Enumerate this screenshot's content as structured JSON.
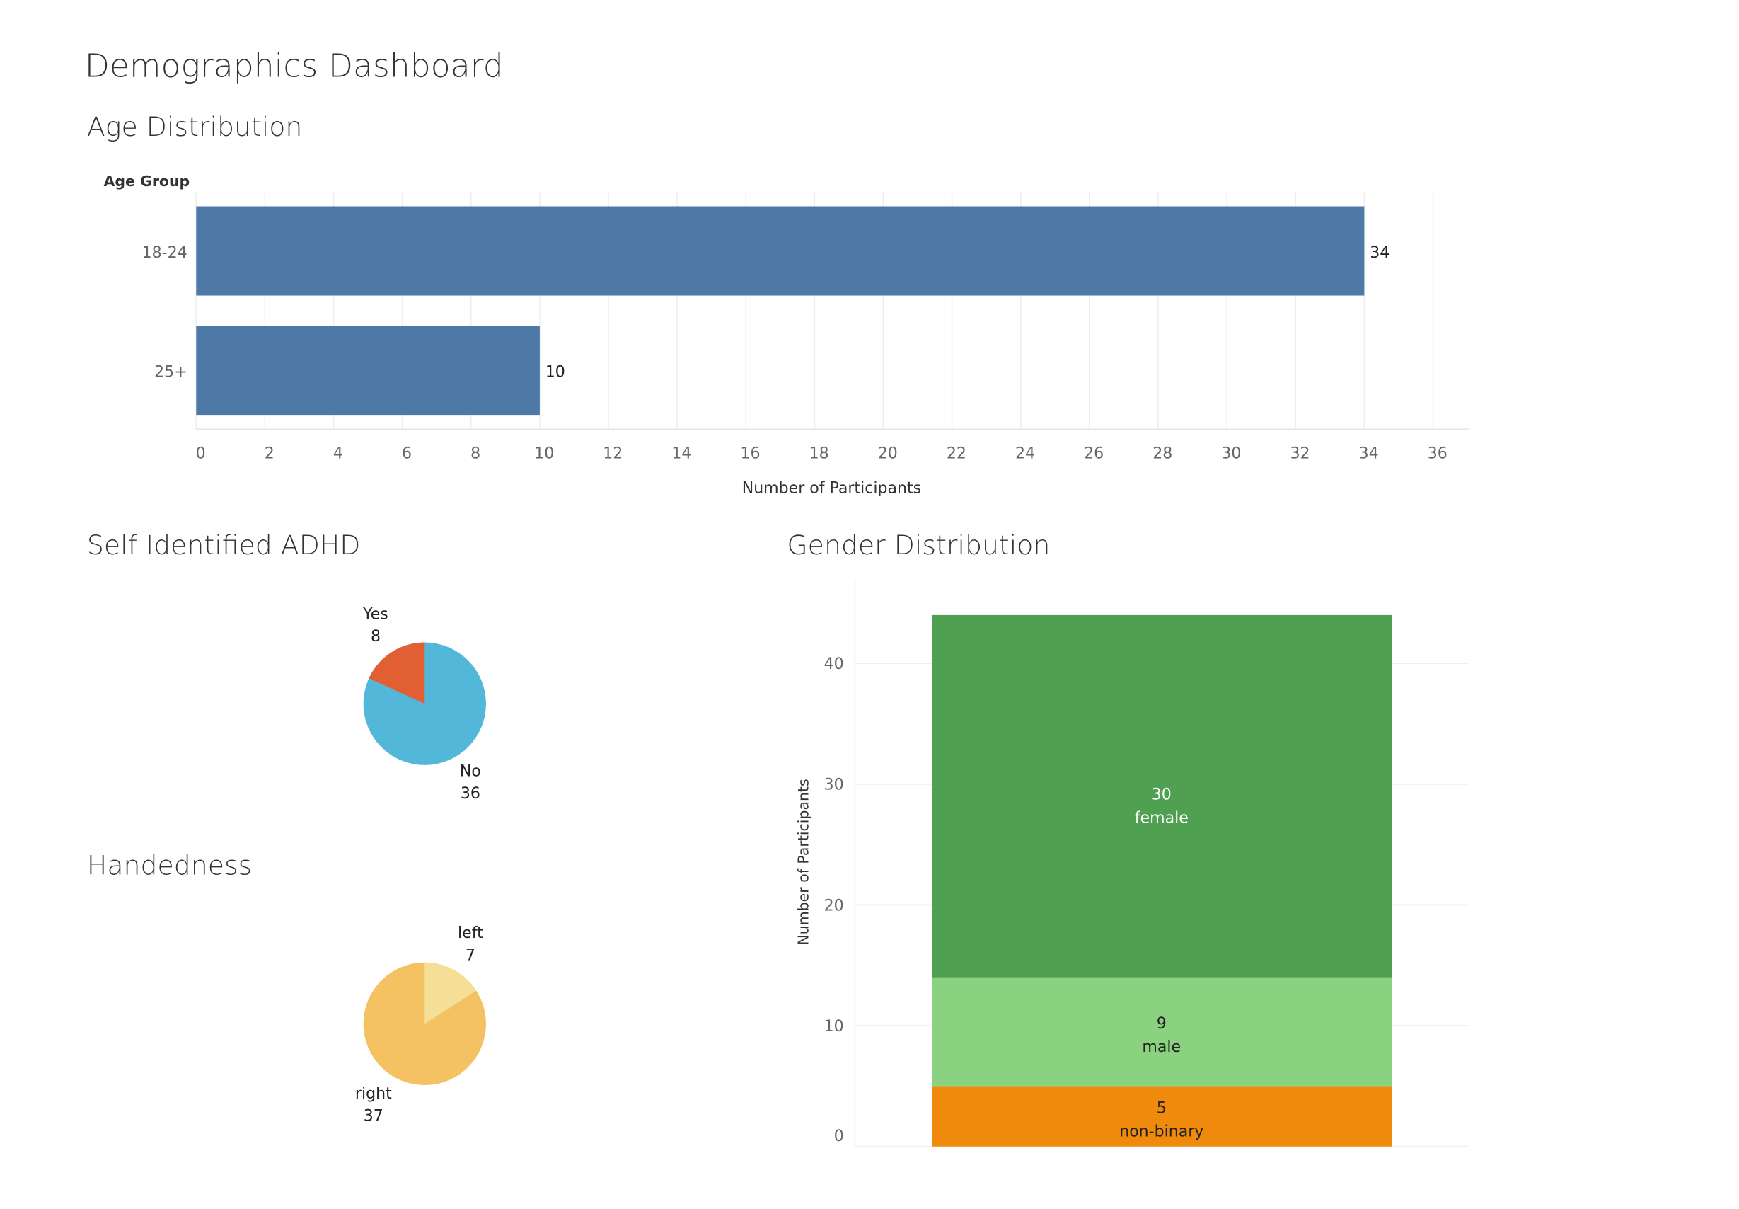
{
  "dashboard_title": "Demographics Dashboard",
  "chart_data": [
    {
      "type": "bar",
      "orientation": "horizontal",
      "title": "Age Distribution",
      "ylabel": "Age Group",
      "xlabel": "Number of Participants",
      "categories": [
        "18-24",
        "25+"
      ],
      "values": [
        34,
        10
      ],
      "xlim": [
        0,
        37
      ],
      "xticks": [
        0,
        2,
        4,
        6,
        8,
        10,
        12,
        14,
        16,
        18,
        20,
        22,
        24,
        26,
        28,
        30,
        32,
        34,
        36
      ],
      "grid": "vertical",
      "color": "#4e79a7"
    },
    {
      "type": "pie",
      "title": "Self Identified ADHD",
      "slices": [
        {
          "label": "Yes",
          "value": 8,
          "color": "#e15f33"
        },
        {
          "label": "No",
          "value": 36,
          "color": "#53b7d9"
        }
      ]
    },
    {
      "type": "pie",
      "title": "Handedness",
      "slices": [
        {
          "label": "left",
          "value": 7,
          "color": "#f5df97"
        },
        {
          "label": "right",
          "value": 37,
          "color": "#f4c163"
        }
      ]
    },
    {
      "type": "bar",
      "stacked": true,
      "title": "Gender Distribution",
      "ylabel": "Number of Participants",
      "ylim": [
        0,
        44
      ],
      "yticks": [
        0,
        10,
        20,
        30,
        40
      ],
      "grid": "horizontal",
      "series": [
        {
          "name": "non-binary",
          "value": 5,
          "color": "#ef8a0c",
          "text_color": "#222"
        },
        {
          "name": "male",
          "value": 9,
          "color": "#8ad27f",
          "text_color": "#222"
        },
        {
          "name": "female",
          "value": 30,
          "color": "#4fa050",
          "text_color": "#ffffff"
        }
      ]
    }
  ]
}
